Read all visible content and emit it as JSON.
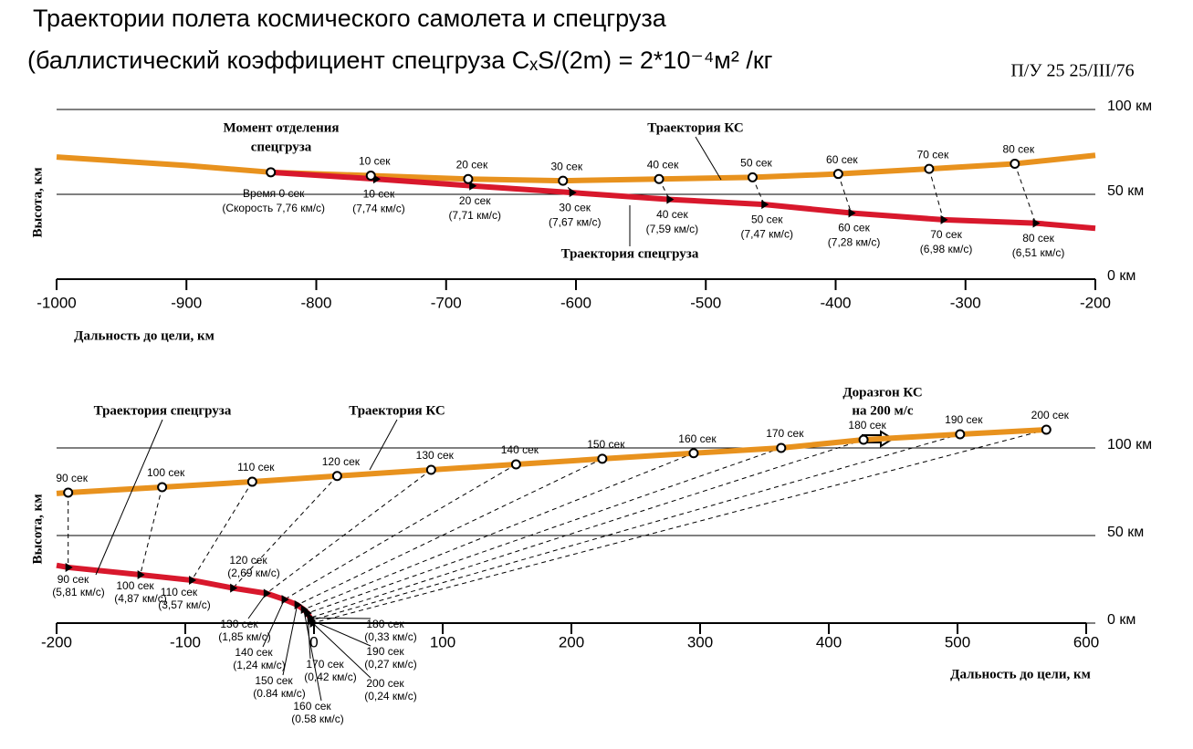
{
  "title": [
    "Траектории полета космического самолета и спецгруза",
    "(баллистический коэффициент спецгруза CₓS/(2m) = 2*10⁻⁴м² /кг"
  ],
  "note": "П/У 25   25/III/76",
  "chart_data": [
    {
      "type": "line",
      "xlabel": "Дальность до цели, км",
      "ylabel": "Высота, км",
      "annotations": [
        "Момент отделения",
        "спецгруза"
      ],
      "xlim": [
        -1000,
        -200
      ],
      "xticks": [
        -1000,
        -900,
        -800,
        -700,
        -600,
        -500,
        -400,
        -300,
        -200
      ],
      "ylim": [
        0,
        100
      ],
      "yticks": [
        {
          "value": 0,
          "label": "0 км"
        },
        {
          "value": 50,
          "label": "50 км"
        },
        {
          "value": 100,
          "label": "100 км"
        }
      ],
      "series": [
        {
          "name": "Траектория КС",
          "color": "#e8921e",
          "x": [
            -1000,
            -900,
            -835,
            -758,
            -683,
            -610,
            -536,
            -464,
            -398,
            -328,
            -262,
            -200
          ],
          "values": [
            72,
            67,
            63,
            61,
            59,
            58,
            59,
            60,
            62,
            65,
            68,
            73
          ]
        },
        {
          "name": "Траектория спецгруза",
          "color": "#d8182c",
          "x": [
            -835,
            -754,
            -680,
            -603,
            -528,
            -455,
            -388,
            -317,
            -246,
            -200
          ],
          "values": [
            63,
            59,
            55,
            51,
            47,
            44,
            39,
            35,
            33,
            30
          ]
        }
      ],
      "ks_points": {
        "x": [
          -835,
          -758,
          -683,
          -610,
          -536,
          -464,
          -398,
          -328,
          -262
        ],
        "values": [
          63,
          61,
          59,
          58,
          59,
          60,
          62,
          65,
          68
        ],
        "labels": [
          null,
          "10 сек",
          "20 сек",
          "30 сек",
          "40 сек",
          "50 сек",
          "60 сек",
          "70 сек",
          "80 сек"
        ]
      },
      "payload_points": {
        "x": [
          -835,
          -754,
          -680,
          -603,
          -528,
          -455,
          -388,
          -317,
          -246
        ],
        "values": [
          63,
          59,
          55,
          51,
          47,
          44,
          39,
          35,
          33
        ],
        "labels": [
          "Время 0 сек",
          "10 сек",
          "20 сек",
          "30 сек",
          "40 сек",
          "50 сек",
          "60 сек",
          "70 сек",
          "80 сек"
        ],
        "speed_labels": [
          "(Скорость 7,76 км/с)",
          "(7,74 км/с)",
          "(7,71 км/с)",
          "(7,67 км/с)",
          "(7,59 км/с)",
          "(7,47 км/с)",
          "(7,28 км/с)",
          "(6,98 км/с)",
          "(6,51 км/с)"
        ]
      }
    },
    {
      "type": "line",
      "xlabel": "Дальность до цели, км",
      "ylabel": "Высота, км",
      "annotations": [
        "Доразгон КС",
        "на 200 м/с"
      ],
      "xlim": [
        -200,
        600
      ],
      "xticks": [
        -200,
        -100,
        0,
        100,
        200,
        300,
        400,
        500,
        600
      ],
      "ylim": [
        0,
        100
      ],
      "yticks": [
        {
          "value": 0,
          "label": "0 км"
        },
        {
          "value": 50,
          "label": "50 км"
        },
        {
          "value": 100,
          "label": "100 км"
        }
      ],
      "series": [
        {
          "name": "Траектория КС",
          "color": "#e8921e",
          "x": [
            -200,
            -191,
            -118,
            -48,
            18,
            91,
            157,
            224,
            295,
            363,
            427,
            502,
            569
          ],
          "values": [
            74,
            74.5,
            77.6,
            80.7,
            84,
            87.5,
            90.6,
            93.8,
            97,
            100,
            104.7,
            107.8,
            110.4
          ]
        },
        {
          "name": "Траектория спецгруза",
          "color": "#d8182c",
          "x": [
            -200,
            -191,
            -135,
            -95,
            -63,
            -37,
            -23,
            -13,
            -8,
            -5,
            -3,
            -2,
            -1
          ],
          "values": [
            33,
            31.8,
            27.6,
            24.5,
            20,
            17,
            13.5,
            10.4,
            7.8,
            5.7,
            3,
            1.6,
            0
          ]
        }
      ],
      "ks_points": {
        "x": [
          -191,
          -118,
          -48,
          18,
          91,
          157,
          224,
          295,
          363,
          427,
          502,
          569
        ],
        "values": [
          74.5,
          77.6,
          80.7,
          84,
          87.5,
          90.6,
          93.8,
          97,
          100,
          104.7,
          107.8,
          110.4
        ],
        "labels": [
          "90 сек",
          "100 сек",
          "110 сек",
          "120 сек",
          "130 сек",
          "140 сек",
          "150 сек",
          "160 сек",
          "170 сек",
          "180 сек",
          "190 сек",
          "200 сек"
        ]
      },
      "payload_points": {
        "x": [
          -191,
          -135,
          -95,
          -63,
          -37,
          -23,
          -13,
          -8,
          -5,
          -3,
          -2,
          -1
        ],
        "values": [
          31.8,
          27.6,
          24.5,
          20,
          17,
          13.5,
          10.4,
          7.8,
          5.7,
          3,
          1.6,
          0
        ],
        "labels": [
          "90 сек",
          "100 сек",
          "110 сек",
          "120 сек",
          "130 сек",
          "140 сек",
          "150 сек",
          "160 сек",
          "170 сек",
          "180 сек",
          "190 сек",
          "200 сек"
        ],
        "speed_labels": [
          "(5,81 км/с)",
          "(4,87 км/с)",
          "(3,57 км/с)",
          "(2,69 км/с)",
          "(1,85 км/с)",
          "(1,24 км/с)",
          "(0.84 км/с)",
          "(0.58 км/с)",
          "(0,42 км/с)",
          "(0,33 км/с)",
          "(0,27 км/с)",
          "(0,24 км/с)"
        ]
      }
    }
  ]
}
